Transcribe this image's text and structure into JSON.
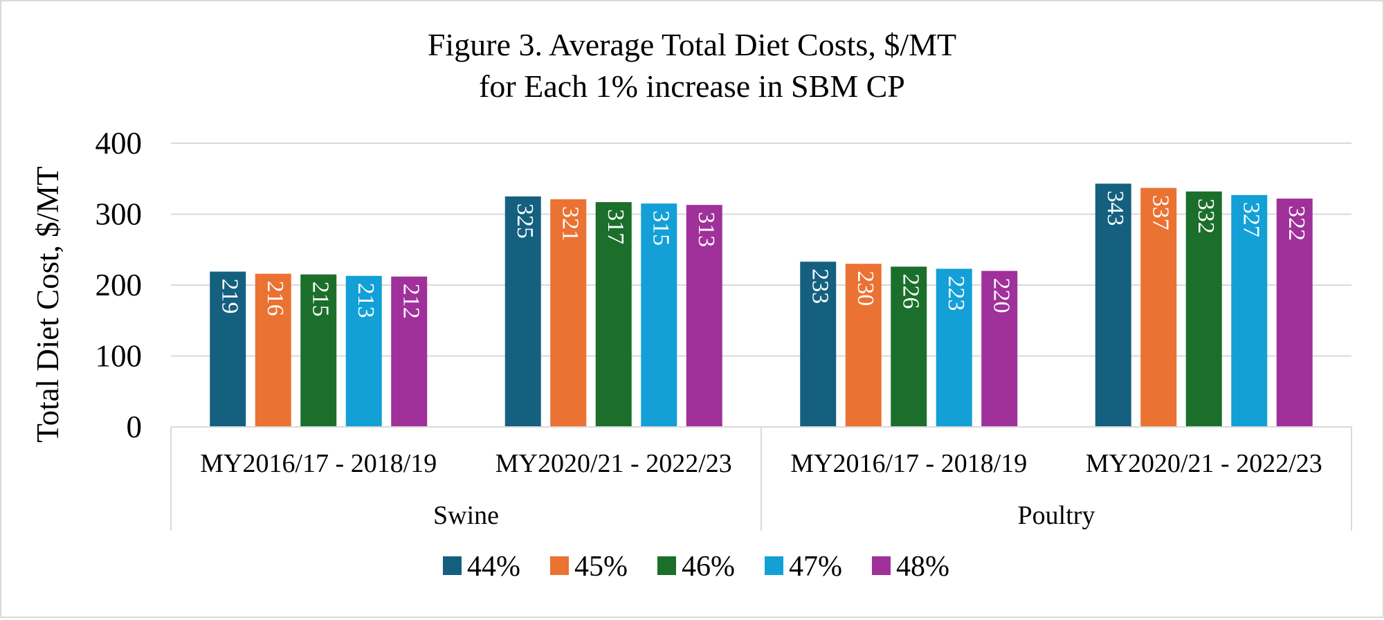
{
  "chart_data": {
    "type": "bar",
    "title": [
      "Figure 3. Average Total Diet Costs, $/MT",
      "for Each 1% increase in SBM CP"
    ],
    "ylabel": "Total Diet Cost, $/MT",
    "ylim": [
      0,
      400
    ],
    "yticks": [
      0,
      100,
      200,
      300,
      400
    ],
    "grid": true,
    "legend_position": "bottom",
    "groups": [
      {
        "name": "Swine",
        "categories": [
          "MY2016/17 - 2018/19",
          "MY2020/21 - 2022/23"
        ]
      },
      {
        "name": "Poultry",
        "categories": [
          "MY2016/17 - 2018/19",
          "MY2020/21 - 2022/23"
        ]
      }
    ],
    "series": [
      {
        "name": "44%",
        "color": "#15607f",
        "values": [
          219,
          325,
          233,
          343
        ]
      },
      {
        "name": "45%",
        "color": "#ea7232",
        "values": [
          216,
          321,
          230,
          337
        ]
      },
      {
        "name": "46%",
        "color": "#1b6f2b",
        "values": [
          215,
          317,
          226,
          332
        ]
      },
      {
        "name": "47%",
        "color": "#12a0d7",
        "values": [
          213,
          315,
          223,
          327
        ]
      },
      {
        "name": "48%",
        "color": "#a0309a",
        "values": [
          212,
          313,
          220,
          322
        ]
      }
    ]
  }
}
